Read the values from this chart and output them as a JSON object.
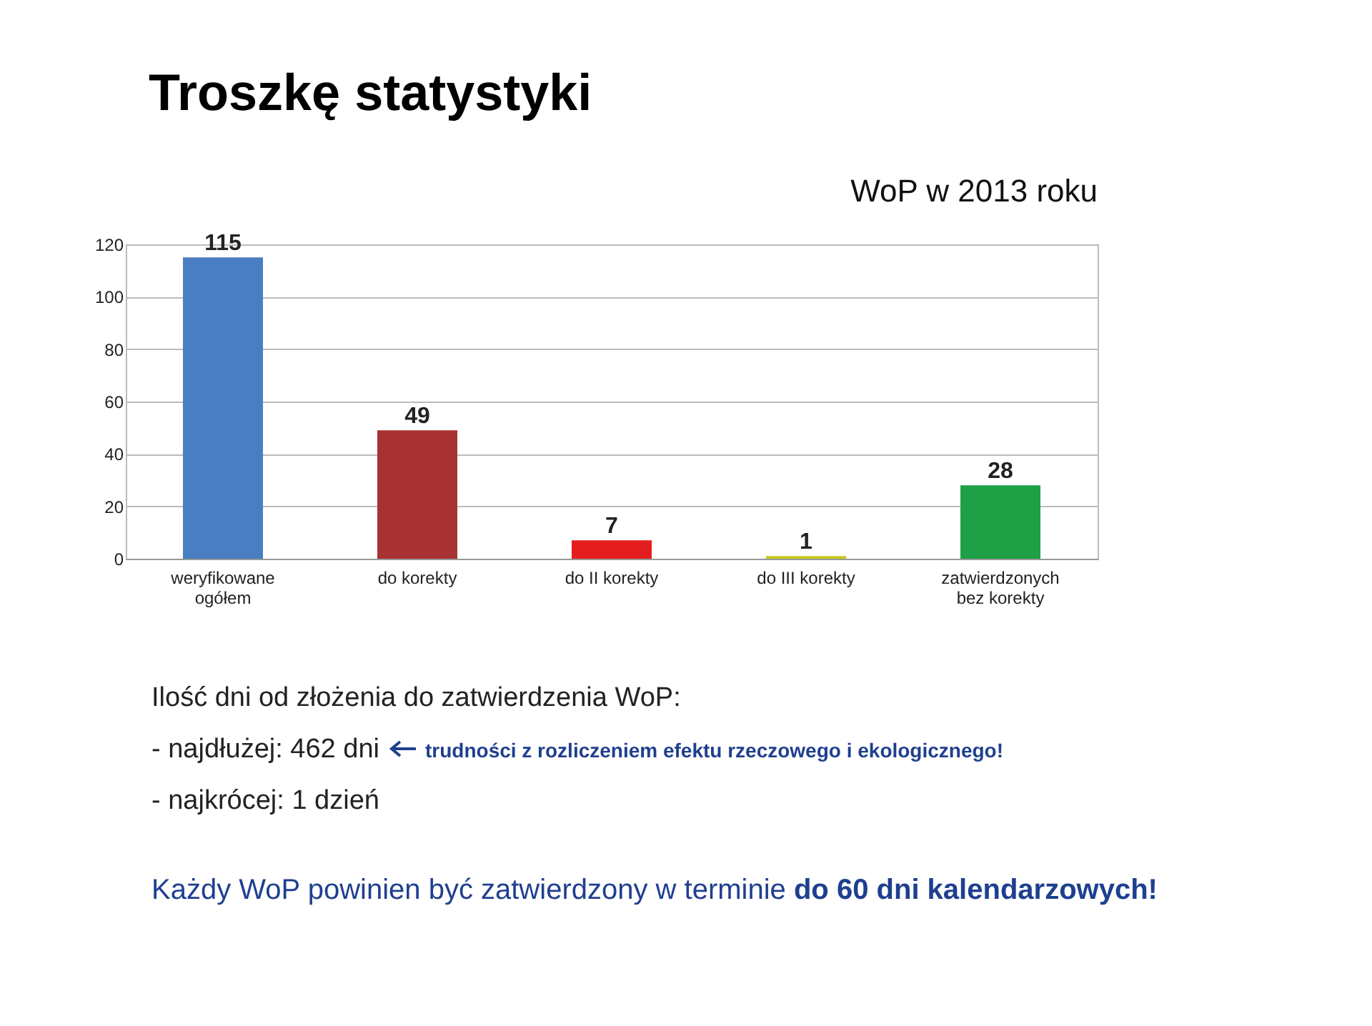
{
  "chart_data": {
    "type": "bar",
    "title": "Troszkę statystyki",
    "subtitle": "WoP w 2013 roku",
    "categories": [
      "weryfikowane ogółem",
      "do korekty",
      "do II korekty",
      "do III korekty",
      "zatwierdzonych bez korekty"
    ],
    "values": [
      115,
      49,
      7,
      1,
      28
    ],
    "colors": [
      "#4a7ec2",
      "#a83232",
      "#e41e1e",
      "#c8c81e",
      "#1ea046"
    ],
    "ylim": [
      0,
      120
    ],
    "yticks": [
      0,
      20,
      40,
      60,
      80,
      100,
      120
    ],
    "grid": "y",
    "data_labels": true,
    "annotations": [
      "Ilość dni od złożenia do zatwierdzenia WoP:",
      "- najdłużej: 462 dni",
      "trudności z rozliczeniem efektu rzeczowego i ekologicznego!",
      "- najkrócej: 1 dzień",
      "Każdy WoP powinien być zatwierdzony w terminie",
      "do 60 dni kalendarzowych!"
    ]
  }
}
